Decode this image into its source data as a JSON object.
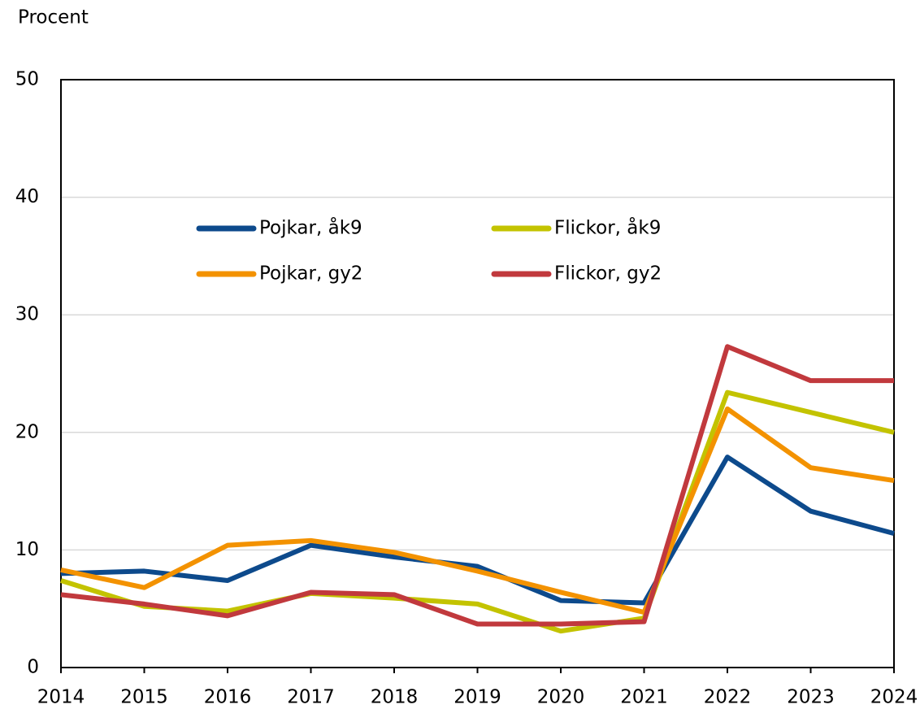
{
  "chart_data": {
    "type": "line",
    "y_label": "Procent",
    "categories": [
      "2014",
      "2015",
      "2016",
      "2017",
      "2018",
      "2019",
      "2020",
      "2021",
      "2022",
      "2023",
      "2024"
    ],
    "series": [
      {
        "name": "Pojkar, åk9",
        "color": "#0d4a8c",
        "values": [
          8.0,
          8.2,
          7.4,
          10.4,
          9.4,
          8.6,
          5.7,
          5.5,
          17.9,
          13.3,
          11.4
        ]
      },
      {
        "name": "Flickor, åk9",
        "color": "#c3c300",
        "values": [
          7.4,
          5.2,
          4.8,
          6.3,
          5.9,
          5.4,
          3.1,
          4.2,
          23.4,
          21.7,
          20.0
        ]
      },
      {
        "name": "Pojkar, gy2",
        "color": "#f39200",
        "values": [
          8.3,
          6.8,
          10.4,
          10.8,
          9.8,
          8.2,
          6.4,
          4.7,
          22.0,
          17.0,
          15.9
        ]
      },
      {
        "name": "Flickor, gy2",
        "color": "#c1393d",
        "values": [
          6.2,
          5.4,
          4.4,
          6.4,
          6.2,
          3.7,
          3.7,
          3.9,
          27.3,
          24.4,
          24.4
        ]
      }
    ],
    "ylim": [
      0,
      50
    ],
    "yticks": [
      0,
      10,
      20,
      30,
      40,
      50
    ],
    "grid": true
  }
}
